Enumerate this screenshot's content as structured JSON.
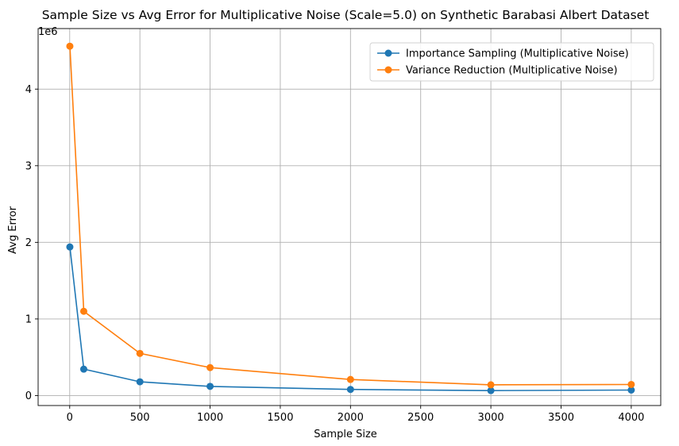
{
  "chart_data": {
    "type": "line",
    "title": "Sample Size vs Avg Error for Multiplicative Noise (Scale=5.0) on Synthetic Barabasi Albert Dataset",
    "xlabel": "Sample Size",
    "ylabel": "Avg Error",
    "y_offset_label": "1e6",
    "y_scale_factor": 1000000,
    "xlim": [
      -225,
      4210
    ],
    "ylim": [
      -130000,
      4790000
    ],
    "x_ticks": [
      0,
      500,
      1000,
      1500,
      2000,
      2500,
      3000,
      3500,
      4000
    ],
    "y_ticks": [
      0,
      1,
      2,
      3,
      4
    ],
    "grid": true,
    "legend_position": "upper right",
    "x": [
      1,
      100,
      500,
      1000,
      2000,
      3000,
      4000
    ],
    "series": [
      {
        "name": "Importance Sampling (Multiplicative Noise)",
        "color": "#1f77b4",
        "marker": "circle",
        "values": [
          1940000,
          345000,
          180000,
          120000,
          80000,
          65000,
          72000
        ]
      },
      {
        "name": "Variance Reduction (Multiplicative Noise)",
        "color": "#ff7f0e",
        "marker": "circle",
        "values": [
          4560000,
          1100000,
          550000,
          365000,
          210000,
          140000,
          145000
        ]
      }
    ]
  }
}
